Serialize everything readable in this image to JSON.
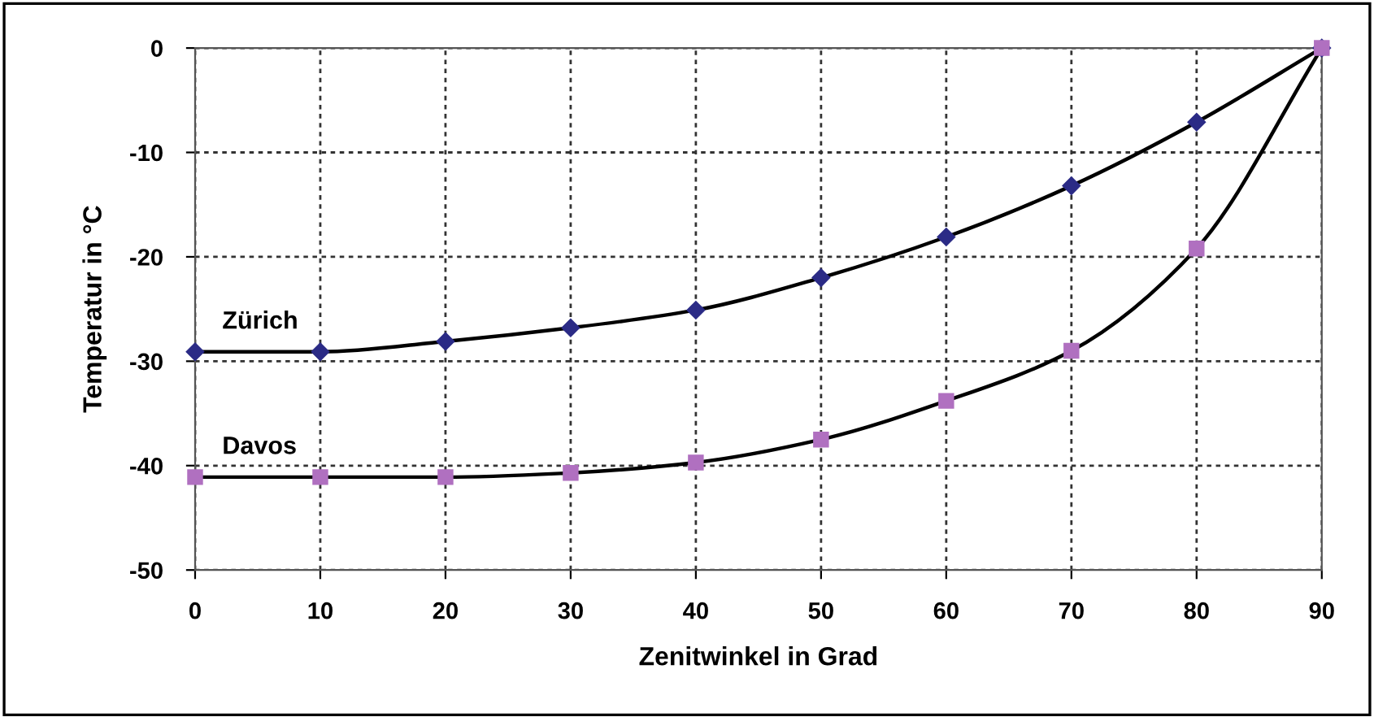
{
  "chart_data": {
    "type": "line",
    "xlabel": "Zenitwinkel in Grad",
    "ylabel": "Temperatur in °C",
    "x": [
      0,
      10,
      20,
      30,
      40,
      50,
      60,
      70,
      80,
      90
    ],
    "series": [
      {
        "name": "Zürich",
        "color": "#2b2b86",
        "marker": "diamond",
        "values": [
          -29.1,
          -29.1,
          -28.1,
          -26.8,
          -25.1,
          -22.0,
          -18.1,
          -13.2,
          -7.1,
          0
        ]
      },
      {
        "name": "Davos",
        "color": "#b070c0",
        "marker": "square",
        "values": [
          -41.1,
          -41.1,
          -41.1,
          -40.7,
          -39.7,
          -37.5,
          -33.8,
          -29.0,
          -19.2,
          0
        ]
      }
    ],
    "xlim": [
      0,
      90
    ],
    "ylim": [
      -50,
      0
    ],
    "xticks": [
      0,
      10,
      20,
      30,
      40,
      50,
      60,
      70,
      80,
      90
    ],
    "yticks": [
      -50,
      -40,
      -30,
      -20,
      -10,
      0
    ],
    "grid": true,
    "legend": false,
    "line_style": "solid"
  }
}
